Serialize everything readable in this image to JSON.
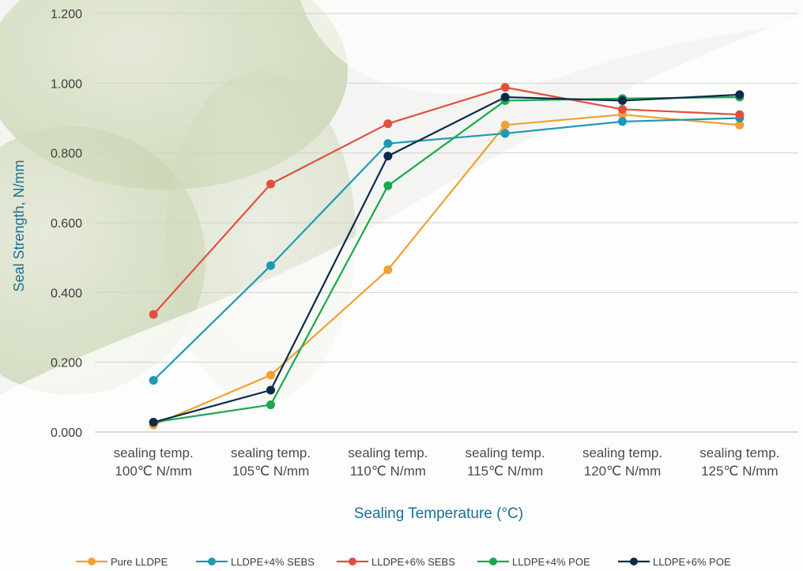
{
  "chart_data": {
    "type": "line",
    "title": "",
    "xlabel": "Sealing Temperature (°C)",
    "ylabel": "Seal Strength, N/mm",
    "ylim": [
      0,
      1.2
    ],
    "yticks": [
      "0.000",
      "0.200",
      "0.400",
      "0.600",
      "0.800",
      "1.000",
      "1.200"
    ],
    "categories": [
      [
        "sealing temp.",
        "100℃ N/mm"
      ],
      [
        "sealing temp.",
        "105℃ N/mm"
      ],
      [
        "sealing temp.",
        "110℃ N/mm"
      ],
      [
        "sealing temp.",
        "115℃ N/mm"
      ],
      [
        "sealing temp.",
        "120℃ N/mm"
      ],
      [
        "sealing temp.",
        "125℃ N/mm"
      ]
    ],
    "grid": "horizontal",
    "legend_position": "bottom",
    "series": [
      {
        "name": "Pure LLDPE",
        "color": "#f0a132",
        "values": [
          0.02,
          0.163,
          0.465,
          0.88,
          0.91,
          0.88
        ]
      },
      {
        "name": "LLDPE+4% SEBS",
        "color": "#1e98b7",
        "values": [
          0.148,
          0.477,
          0.827,
          0.856,
          0.89,
          0.9
        ]
      },
      {
        "name": "LLDPE+6% SEBS",
        "color": "#e14f3f",
        "values": [
          0.337,
          0.711,
          0.884,
          0.988,
          0.925,
          0.91
        ]
      },
      {
        "name": "LLDPE+4% POE",
        "color": "#19a94e",
        "values": [
          0.028,
          0.078,
          0.706,
          0.95,
          0.956,
          0.96
        ]
      },
      {
        "name": "LLDPE+6% POE",
        "color": "#0c2a4b",
        "values": [
          0.028,
          0.12,
          0.791,
          0.96,
          0.95,
          0.967
        ]
      }
    ]
  }
}
